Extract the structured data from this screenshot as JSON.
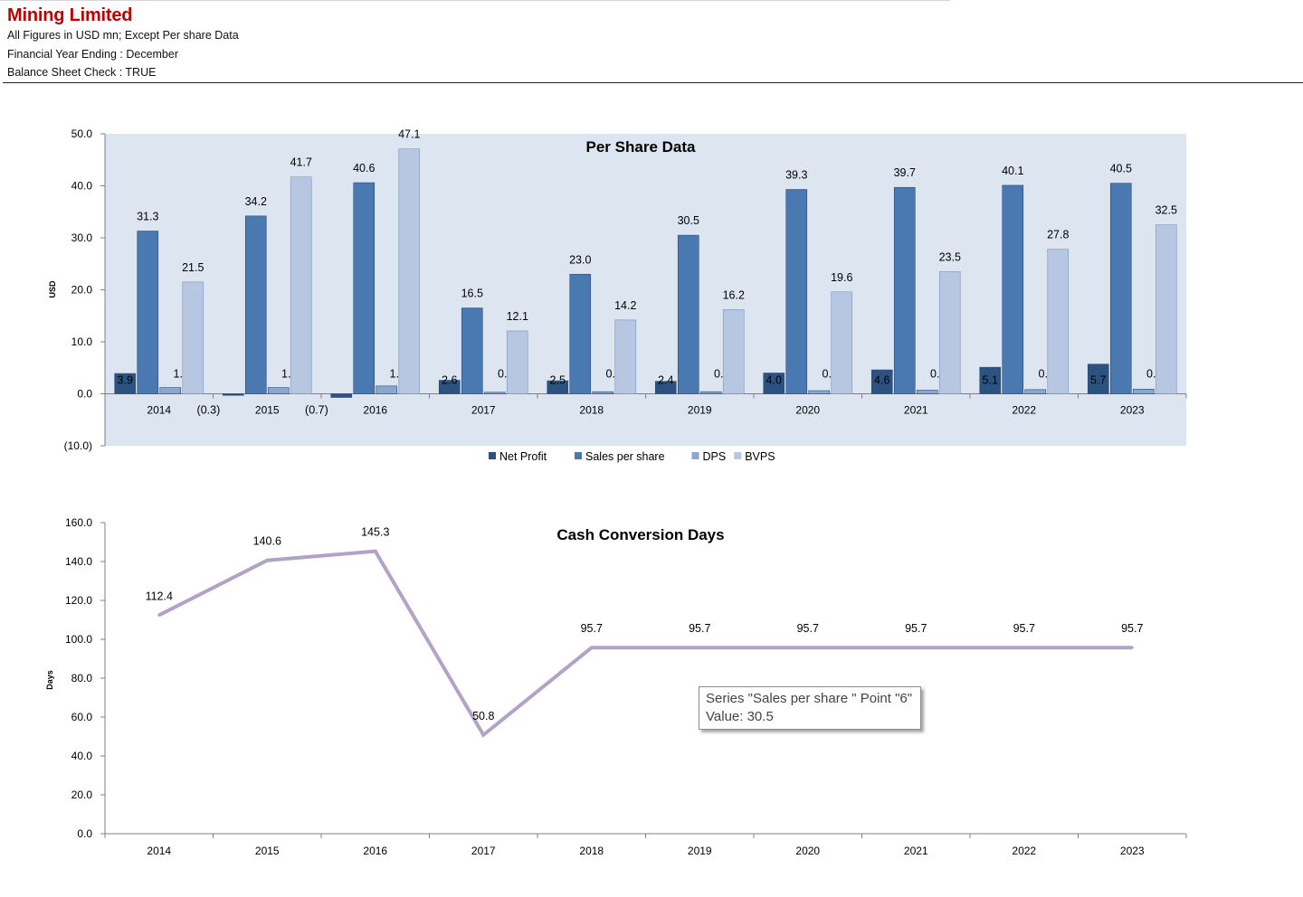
{
  "header": {
    "company": "Mining Limited",
    "line1": "All Figures in USD mn; Except Per share Data",
    "line2": "Financial Year Ending : December",
    "line3": "Balance Sheet Check : TRUE"
  },
  "tooltip": {
    "line1": "Series \"Sales per share \" Point \"6\"",
    "line2": "Value: 30.5"
  },
  "chart_data": [
    {
      "type": "bar",
      "title": "Per Share Data",
      "xlabel": "",
      "ylabel": "USD",
      "ylim": [
        -10,
        50
      ],
      "yticks": [
        -10,
        0,
        10,
        20,
        30,
        40,
        50
      ],
      "categories": [
        "2014",
        "2015",
        "2016",
        "2017",
        "2018",
        "2019",
        "2020",
        "2021",
        "2022",
        "2023"
      ],
      "series": [
        {
          "name": "Net Profit",
          "color": "#2c5282",
          "values": [
            3.9,
            -0.3,
            -0.7,
            2.6,
            2.5,
            2.4,
            4.0,
            4.6,
            5.1,
            5.7
          ]
        },
        {
          "name": "Sales per share",
          "color": "#4a78b0",
          "values": [
            31.3,
            34.2,
            40.6,
            16.5,
            23.0,
            30.5,
            39.3,
            39.7,
            40.1,
            40.5
          ]
        },
        {
          "name": "DPS",
          "color": "#8aa7d2",
          "values": [
            1.2,
            1.2,
            1.5,
            0.3,
            0.4,
            0.4,
            0.6,
            0.7,
            0.8,
            0.9
          ]
        },
        {
          "name": "BVPS",
          "color": "#b7c7e2",
          "values": [
            21.5,
            41.7,
            47.1,
            12.1,
            14.2,
            16.2,
            19.6,
            23.5,
            27.8,
            32.5
          ]
        }
      ],
      "legend_position": "bottom",
      "plot_background": "#dde5f0"
    },
    {
      "type": "line",
      "title": "Cash Conversion Days",
      "xlabel": "",
      "ylabel": "Days",
      "ylim": [
        0,
        160
      ],
      "yticks": [
        0,
        20,
        40,
        60,
        80,
        100,
        120,
        140,
        160
      ],
      "categories": [
        "2014",
        "2015",
        "2016",
        "2017",
        "2018",
        "2019",
        "2020",
        "2021",
        "2022",
        "2023"
      ],
      "series": [
        {
          "color": "#b3a2c8",
          "values": [
            112.4,
            140.6,
            145.3,
            50.8,
            95.7,
            95.7,
            95.7,
            95.7,
            95.7,
            95.7
          ]
        }
      ]
    }
  ]
}
